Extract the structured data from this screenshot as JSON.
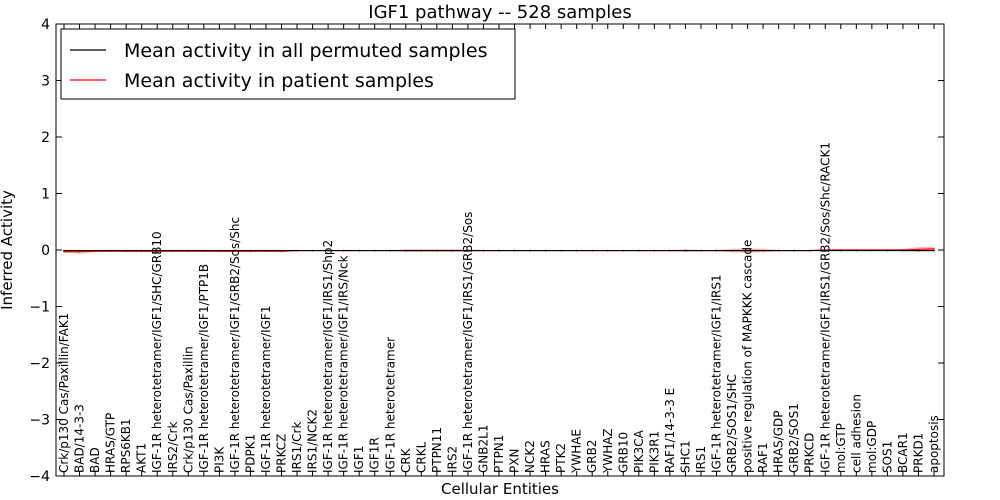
{
  "chart_data": {
    "type": "line",
    "title": "IGF1 pathway -- 528 samples",
    "xlabel": "Cellular Entities",
    "ylabel": "Inferred Activity",
    "ylim": [
      -4,
      4
    ],
    "yticks": [
      -4,
      -3,
      -2,
      -1,
      0,
      1,
      2,
      3,
      4
    ],
    "ytick_labels": [
      "−4",
      "−3",
      "−2",
      "−1",
      "0",
      "1",
      "2",
      "3",
      "4"
    ],
    "legend_position": "top-left",
    "categories": [
      "Crk/p130 Cas/Paxillin/FAK1",
      "BAD/14-3-3",
      "BAD",
      "HRAS/GTP",
      "RPS6KB1",
      "AKT1",
      "IGF-1R heterotetramer/IGF1/SHC/GRB10",
      "IRS2/Crk",
      "Crk/p130 Cas/Paxillin",
      "IGF-1R heterotetramer/IGF1/PTP1B",
      "PI3K",
      "IGF-1R heterotetramer/IGF1/GRB2/Sos/Shc",
      "PDPK1",
      "IGF-1R heterotetramer/IGF1",
      "PRKCZ",
      "IRS1/Crk",
      "IRS1/NCK2",
      "IGF-1R heterotetramer/IGF1/IRS1/Shp2",
      "IGF-1R heterotetramer/IGF1/IRS/Nck",
      "IGF1",
      "IGF1R",
      "IGF-1R heterotetramer",
      "CRK",
      "CRKL",
      "PTPN11",
      "IRS2",
      "IGF-1R heterotetramer/IGF1/IRS1/GRB2/Sos",
      "GNB2L1",
      "PTPN1",
      "PXN",
      "NCK2",
      "HRAS",
      "PTK2",
      "YWHAE",
      "GRB2",
      "YWHAZ",
      "GRB10",
      "PIK3CA",
      "PIK3R1",
      "RAF1/14-3-3 E",
      "SHC1",
      "IRS1",
      "IGF-1R heterotetramer/IGF1/IRS1",
      "GRB2/SOS1/SHC",
      "positive regulation of MAPKKK cascade",
      "RAF1",
      "HRAS/GDP",
      "GRB2/SOS1",
      "PRKCD",
      "IGF-1R heterotetramer/IGF1/IRS1/GRB2/Sos/Shc/RACK1",
      "mol:GTP",
      "cell adhesion",
      "mol:GDP",
      "SOS1",
      "BCAR1",
      "PRKD1",
      "apoptosis"
    ],
    "series": [
      {
        "name": "Mean activity in all permuted samples",
        "color": "#000000",
        "values": [
          -0.01,
          -0.01,
          -0.01,
          -0.01,
          -0.01,
          -0.01,
          -0.01,
          -0.01,
          -0.01,
          -0.01,
          -0.01,
          -0.01,
          -0.01,
          -0.01,
          -0.01,
          -0.01,
          -0.01,
          -0.01,
          -0.01,
          -0.01,
          -0.01,
          -0.01,
          -0.01,
          -0.01,
          -0.01,
          -0.01,
          -0.01,
          -0.01,
          -0.01,
          -0.01,
          -0.01,
          -0.01,
          -0.01,
          -0.01,
          -0.01,
          -0.01,
          -0.01,
          -0.01,
          -0.01,
          -0.01,
          -0.01,
          -0.01,
          -0.01,
          -0.01,
          -0.01,
          -0.01,
          -0.01,
          -0.01,
          -0.01,
          -0.01,
          -0.01,
          -0.01,
          -0.01,
          -0.01,
          -0.01,
          -0.01,
          -0.01
        ]
      },
      {
        "name": "Mean activity in patient samples",
        "color": "#ff0000",
        "band_color": "#e8a0a0",
        "values": [
          -0.03,
          -0.03,
          -0.02,
          -0.02,
          -0.02,
          -0.02,
          -0.02,
          -0.02,
          -0.02,
          -0.02,
          -0.02,
          -0.02,
          -0.02,
          -0.02,
          -0.02,
          -0.01,
          -0.01,
          -0.01,
          -0.01,
          -0.01,
          -0.01,
          -0.01,
          -0.01,
          -0.01,
          -0.01,
          -0.01,
          -0.01,
          -0.01,
          -0.01,
          -0.01,
          -0.01,
          -0.01,
          -0.01,
          -0.01,
          -0.01,
          -0.01,
          -0.01,
          -0.01,
          -0.01,
          -0.01,
          -0.01,
          -0.01,
          -0.01,
          -0.01,
          -0.01,
          -0.01,
          -0.01,
          -0.01,
          -0.01,
          0.0,
          0.0,
          0.0,
          0.0,
          0.0,
          0.0,
          0.01,
          0.02
        ],
        "band": [
          0.02,
          0.03,
          0.02,
          0.01,
          0.02,
          0.02,
          0.02,
          0.01,
          0.01,
          0.01,
          0.02,
          0.02,
          0.02,
          0.01,
          0.02,
          0.01,
          0.01,
          0.01,
          0.01,
          0.01,
          0.01,
          0.01,
          0.02,
          0.02,
          0.02,
          0.02,
          0.02,
          0.01,
          0.01,
          0.01,
          0.01,
          0.01,
          0.01,
          0.01,
          0.01,
          0.01,
          0.01,
          0.01,
          0.01,
          0.01,
          0.02,
          0.01,
          0.01,
          0.03,
          0.04,
          0.03,
          0.01,
          0.01,
          0.01,
          0.01,
          0.01,
          0.01,
          0.01,
          0.01,
          0.02,
          0.04,
          0.04
        ]
      }
    ]
  }
}
